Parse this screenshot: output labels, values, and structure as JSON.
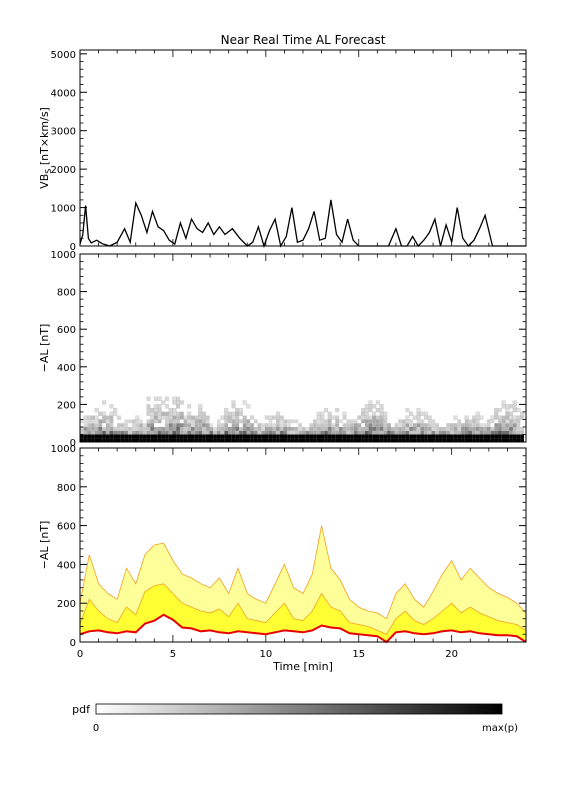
{
  "chart_data": [
    {
      "type": "line",
      "title": "Near Real Time AL Forecast",
      "ylabel_main": "VB",
      "ylabel_sub": "S",
      "ylabel_units": " [nT×km/s]",
      "ylim": [
        0,
        5100
      ],
      "yticks": [
        0,
        1000,
        2000,
        3000,
        4000,
        5000
      ],
      "xlim": [
        0,
        24
      ],
      "series": [
        {
          "x": [
            0,
            0.15,
            0.3,
            0.45,
            0.6,
            0.9,
            1.2,
            1.6,
            2.0,
            2.4,
            2.7,
            3.0,
            3.3,
            3.6,
            3.9,
            4.2,
            4.5,
            4.8,
            5.1,
            5.4,
            5.7,
            6.0,
            6.3,
            6.6,
            6.9,
            7.2,
            7.5,
            7.8,
            8.2,
            8.6,
            9.0,
            9.3,
            9.6,
            9.9,
            10.2,
            10.5,
            10.8,
            11.1,
            11.4,
            11.7,
            12.0,
            12.3,
            12.6,
            12.9,
            13.2,
            13.5,
            13.8,
            14.1,
            14.4,
            14.7,
            15.0,
            15.4,
            15.8,
            16.2,
            16.6,
            17.0,
            17.3,
            17.6,
            17.9,
            18.2,
            18.5,
            18.8,
            19.1,
            19.4,
            19.7,
            20.0,
            20.3,
            20.6,
            20.9,
            21.2,
            21.5,
            21.8,
            22.2,
            22.6,
            23.0,
            23.4,
            24.0
          ],
          "y": [
            50,
            300,
            1050,
            200,
            80,
            150,
            60,
            0,
            100,
            450,
            100,
            1120,
            800,
            350,
            900,
            500,
            400,
            150,
            50,
            600,
            200,
            700,
            450,
            350,
            600,
            300,
            500,
            300,
            450,
            200,
            0,
            100,
            500,
            0,
            400,
            700,
            0,
            250,
            1000,
            100,
            150,
            450,
            900,
            150,
            200,
            1200,
            300,
            100,
            700,
            150,
            0,
            0,
            0,
            0,
            0,
            450,
            0,
            0,
            250,
            0,
            150,
            350,
            700,
            0,
            550,
            100,
            1000,
            200,
            0,
            150,
            450,
            800,
            0,
            0,
            0,
            0,
            0
          ]
        }
      ]
    },
    {
      "type": "heatmap",
      "ylabel": "−AL [nT]",
      "ylim": [
        0,
        1000
      ],
      "yticks": [
        0,
        200,
        400,
        600,
        800,
        1000
      ],
      "xlim": [
        0,
        24
      ]
    },
    {
      "type": "area",
      "ylabel": "−AL [nT]",
      "xlabel": "Time [min]",
      "ylim": [
        0,
        1000
      ],
      "yticks": [
        0,
        200,
        400,
        600,
        800,
        1000
      ],
      "xlim": [
        0,
        24
      ],
      "xticks": [
        0,
        5,
        10,
        15,
        20
      ],
      "series": [
        {
          "x": [
            0,
            0.5,
            1.0,
            1.5,
            2.0,
            2.5,
            3.0,
            3.5,
            4.0,
            4.5,
            5.0,
            5.5,
            6.0,
            6.5,
            7.0,
            7.5,
            8.0,
            8.5,
            9.0,
            9.5,
            10.0,
            10.5,
            11.0,
            11.5,
            12.0,
            12.5,
            13.0,
            13.5,
            14.0,
            14.5,
            15.0,
            15.5,
            16.0,
            16.5,
            17.0,
            17.5,
            18.0,
            18.5,
            19.0,
            19.5,
            20.0,
            20.5,
            21.0,
            21.5,
            22.0,
            22.5,
            23.0,
            23.5,
            24.0
          ],
          "y": [
            40,
            55,
            60,
            50,
            45,
            55,
            50,
            95,
            110,
            140,
            115,
            75,
            70,
            55,
            60,
            50,
            45,
            55,
            50,
            45,
            40,
            50,
            60,
            55,
            50,
            60,
            85,
            75,
            70,
            45,
            40,
            35,
            30,
            0,
            50,
            55,
            45,
            40,
            45,
            55,
            60,
            50,
            55,
            45,
            40,
            35,
            35,
            30,
            0
          ]
        },
        {
          "x": [
            0,
            0.5,
            1.0,
            1.5,
            2.0,
            2.5,
            3.0,
            3.5,
            4.0,
            4.5,
            5.0,
            5.5,
            6.0,
            6.5,
            7.0,
            7.5,
            8.0,
            8.5,
            9.0,
            9.5,
            10.0,
            10.5,
            11.0,
            11.5,
            12.0,
            12.5,
            13.0,
            13.5,
            14.0,
            14.5,
            15.0,
            15.5,
            16.0,
            16.5,
            17.0,
            17.5,
            18.0,
            18.5,
            19.0,
            19.5,
            20.0,
            20.5,
            21.0,
            21.5,
            22.0,
            22.5,
            23.0,
            23.5,
            24.0
          ],
          "y": [
            90,
            220,
            160,
            120,
            100,
            180,
            140,
            260,
            290,
            300,
            250,
            200,
            180,
            160,
            150,
            170,
            130,
            200,
            120,
            110,
            100,
            150,
            200,
            120,
            110,
            160,
            250,
            180,
            160,
            100,
            90,
            80,
            60,
            40,
            120,
            160,
            110,
            90,
            120,
            160,
            200,
            150,
            180,
            150,
            130,
            110,
            100,
            90,
            60
          ]
        },
        {
          "x": [
            0,
            0.5,
            1.0,
            1.5,
            2.0,
            2.5,
            3.0,
            3.5,
            4.0,
            4.5,
            5.0,
            5.5,
            6.0,
            6.5,
            7.0,
            7.5,
            8.0,
            8.5,
            9.0,
            9.5,
            10.0,
            10.5,
            11.0,
            11.5,
            12.0,
            12.5,
            13.0,
            13.5,
            14.0,
            14.5,
            15.0,
            15.5,
            16.0,
            16.5,
            17.0,
            17.5,
            18.0,
            18.5,
            19.0,
            19.5,
            20.0,
            20.5,
            21.0,
            21.5,
            22.0,
            22.5,
            23.0,
            23.5,
            24.0
          ],
          "y": [
            200,
            450,
            300,
            250,
            220,
            380,
            300,
            450,
            500,
            510,
            420,
            350,
            330,
            300,
            280,
            330,
            250,
            380,
            250,
            220,
            200,
            300,
            400,
            280,
            250,
            350,
            600,
            380,
            320,
            220,
            180,
            160,
            150,
            120,
            250,
            300,
            220,
            180,
            260,
            350,
            420,
            320,
            380,
            330,
            280,
            250,
            230,
            200,
            150
          ]
        }
      ]
    }
  ],
  "colorbar": {
    "label": "pdf",
    "min_label": "0",
    "max_label": "max(p)"
  },
  "colors": {
    "median_line": "#e60000",
    "inner_band": "#ffff33",
    "outer_band": "#ffff99",
    "band_edges": "#f0a020"
  }
}
